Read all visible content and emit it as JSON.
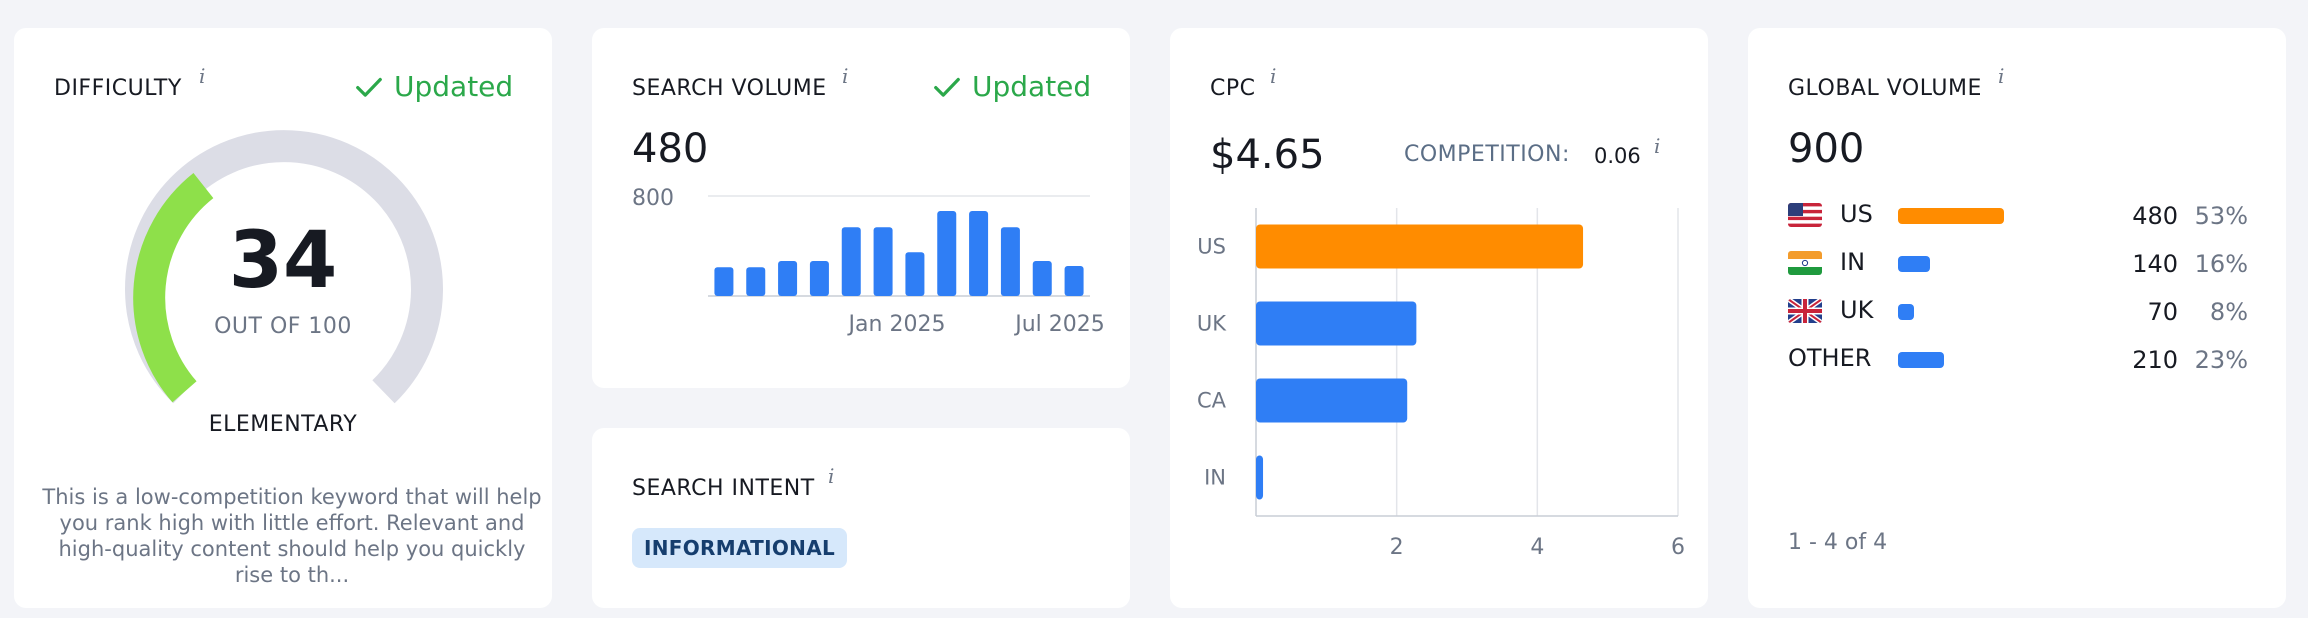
{
  "difficulty": {
    "title": "DIFFICULTY",
    "info_glyph": "i",
    "updated_label": "Updated",
    "score": "34",
    "score_value": 34,
    "out_of": "OUT OF 100",
    "level": "ELEMENTARY",
    "description": "This is a low-competition keyword that will help you rank high with little effort. Relevant and high-quality content should help you quickly rise to th...",
    "colors": {
      "filled": "#8ee04a",
      "track": "#dcdde6"
    }
  },
  "search_volume": {
    "title": "SEARCH VOLUME",
    "info_glyph": "i",
    "updated_label": "Updated",
    "value": "480",
    "chart_data": {
      "type": "bar",
      "title": "",
      "xlabel": "",
      "ylabel": "",
      "ylim": [
        0,
        800
      ],
      "y_ticks": [
        "800"
      ],
      "x_tick_labels": [
        "Jan 2025",
        "Jul 2025"
      ],
      "values": [
        230,
        230,
        280,
        280,
        550,
        550,
        350,
        680,
        680,
        550,
        280,
        240
      ],
      "color": "#2f7ef5",
      "grid": true
    }
  },
  "search_intent": {
    "title": "SEARCH INTENT",
    "info_glyph": "i",
    "tag": "INFORMATIONAL"
  },
  "cpc": {
    "title": "CPC",
    "info_glyph": "i",
    "value": "$4.65",
    "competition_label": "COMPETITION:",
    "competition_value": "0.06",
    "chart_data": {
      "type": "bar",
      "orientation": "horizontal",
      "title": "",
      "xlabel": "",
      "ylabel": "",
      "categories": [
        "US",
        "UK",
        "CA",
        "IN"
      ],
      "values": [
        4.65,
        2.28,
        2.15,
        0.1
      ],
      "xlim": [
        0,
        6
      ],
      "x_ticks": [
        "2",
        "4",
        "6"
      ],
      "colors": [
        "#ff8c00",
        "#2f7ef5",
        "#2f7ef5",
        "#2f7ef5"
      ],
      "grid": true
    }
  },
  "global_volume": {
    "title": "GLOBAL VOLUME",
    "info_glyph": "i",
    "value": "900",
    "rows": [
      {
        "country": "US",
        "flag": "us-flag-icon",
        "volume": "480",
        "pct": "53%",
        "share": 0.53,
        "color": "#ff8c00"
      },
      {
        "country": "IN",
        "flag": "in-flag-icon",
        "volume": "140",
        "pct": "16%",
        "share": 0.16,
        "color": "#2f7ef5"
      },
      {
        "country": "UK",
        "flag": "uk-flag-icon",
        "volume": "70",
        "pct": "8%",
        "share": 0.08,
        "color": "#2f7ef5"
      },
      {
        "country": "OTHER",
        "flag": "",
        "volume": "210",
        "pct": "23%",
        "share": 0.23,
        "color": "#2f7ef5"
      }
    ],
    "pagination": "1 - 4 of 4"
  }
}
